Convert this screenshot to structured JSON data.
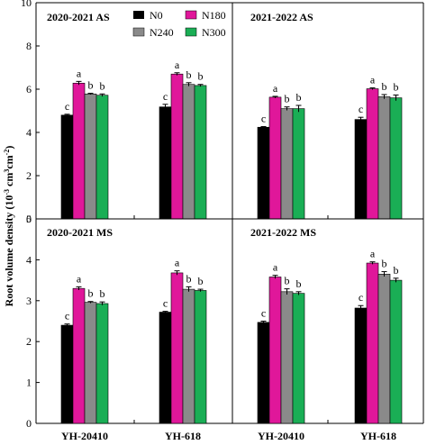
{
  "figure": {
    "ylabel_main": "Root volume density (10",
    "ylabel_sup1": "-3",
    "ylabel_mid": " cm",
    "ylabel_sup2": "3",
    "ylabel_end": "cm",
    "ylabel_sup3": "-2",
    "ylabel_close": ")"
  },
  "legend": {
    "items": [
      {
        "name": "N0",
        "color": "#000000"
      },
      {
        "name": "N180",
        "color": "#e0179a"
      },
      {
        "name": "N240",
        "color": "#8a8a8a"
      },
      {
        "name": "N300",
        "color": "#1aae55"
      }
    ]
  },
  "chart_data": [
    {
      "type": "bar",
      "title": "2020-2021  AS",
      "categories": [
        "YH-20410",
        "YH-618"
      ],
      "ylim": [
        0,
        10
      ],
      "yticks": [
        0,
        2,
        4,
        6,
        8,
        10
      ],
      "series": [
        {
          "name": "N0",
          "values": [
            4.8,
            5.18
          ],
          "errors": [
            0.04,
            0.12
          ],
          "sig": [
            "c",
            "c"
          ]
        },
        {
          "name": "N180",
          "values": [
            6.28,
            6.7
          ],
          "errors": [
            0.08,
            0.06
          ],
          "sig": [
            "a",
            "a"
          ]
        },
        {
          "name": "N240",
          "values": [
            5.78,
            6.22
          ],
          "errors": [
            0.03,
            0.08
          ],
          "sig": [
            "b",
            "b"
          ]
        },
        {
          "name": "N300",
          "values": [
            5.72,
            6.17
          ],
          "errors": [
            0.06,
            0.05
          ],
          "sig": [
            "b",
            "b"
          ]
        }
      ]
    },
    {
      "type": "bar",
      "title": "2021-2022   AS",
      "categories": [
        "YH-20410",
        "YH-618"
      ],
      "ylim": [
        0,
        10
      ],
      "series": [
        {
          "name": "N0",
          "values": [
            4.24,
            4.6
          ],
          "errors": [
            0.03,
            0.1
          ],
          "sig": [
            "c",
            "c"
          ]
        },
        {
          "name": "N180",
          "values": [
            5.63,
            6.02
          ],
          "errors": [
            0.04,
            0.04
          ],
          "sig": [
            "a",
            "a"
          ]
        },
        {
          "name": "N240",
          "values": [
            5.1,
            5.65
          ],
          "errors": [
            0.08,
            0.1
          ],
          "sig": [
            "b",
            "b"
          ]
        },
        {
          "name": "N300",
          "values": [
            5.1,
            5.6
          ],
          "errors": [
            0.15,
            0.13
          ],
          "sig": [
            "b",
            "b"
          ]
        }
      ]
    },
    {
      "type": "bar",
      "title": "2020-2021  MS",
      "categories": [
        "YH-20410",
        "YH-618"
      ],
      "ylim": [
        0,
        5
      ],
      "yticks": [
        0,
        1,
        2,
        3,
        4,
        5
      ],
      "series": [
        {
          "name": "N0",
          "values": [
            2.4,
            2.72
          ],
          "errors": [
            0.03,
            0.02
          ],
          "sig": [
            "c",
            "c"
          ]
        },
        {
          "name": "N180",
          "values": [
            3.3,
            3.68
          ],
          "errors": [
            0.04,
            0.05
          ],
          "sig": [
            "a",
            "a"
          ]
        },
        {
          "name": "N240",
          "values": [
            2.96,
            3.28
          ],
          "errors": [
            0.02,
            0.06
          ],
          "sig": [
            "b",
            "b"
          ]
        },
        {
          "name": "N300",
          "values": [
            2.93,
            3.25
          ],
          "errors": [
            0.04,
            0.03
          ],
          "sig": [
            "b",
            "b"
          ]
        }
      ]
    },
    {
      "type": "bar",
      "title": "2021-2022   MS",
      "categories": [
        "YH-20410",
        "YH-618"
      ],
      "ylim": [
        0,
        5
      ],
      "series": [
        {
          "name": "N0",
          "values": [
            2.47,
            2.82
          ],
          "errors": [
            0.03,
            0.06
          ],
          "sig": [
            "c",
            "c"
          ]
        },
        {
          "name": "N180",
          "values": [
            3.58,
            3.92
          ],
          "errors": [
            0.04,
            0.03
          ],
          "sig": [
            "a",
            "a"
          ]
        },
        {
          "name": "N240",
          "values": [
            3.22,
            3.65
          ],
          "errors": [
            0.07,
            0.06
          ],
          "sig": [
            "b",
            "b"
          ]
        },
        {
          "name": "N300",
          "values": [
            3.18,
            3.5
          ],
          "errors": [
            0.04,
            0.05
          ],
          "sig": [
            "b",
            "b"
          ]
        }
      ]
    }
  ]
}
